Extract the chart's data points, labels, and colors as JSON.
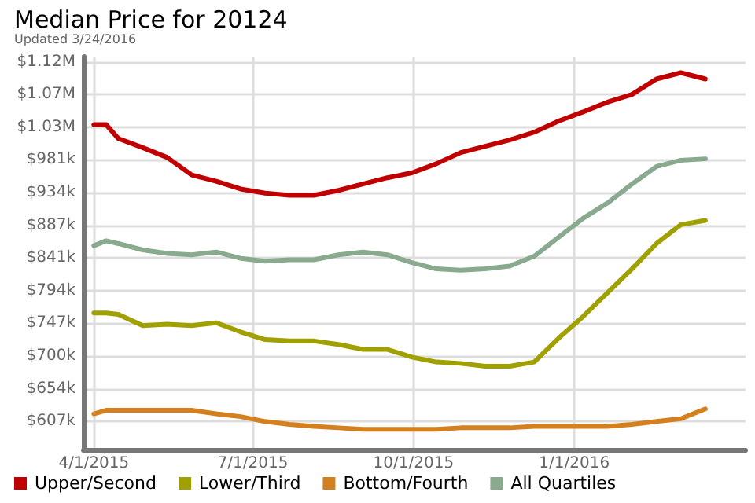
{
  "chart_data": {
    "type": "line",
    "title": "Median Price for 20124",
    "subtitle": "Updated 3/24/2016",
    "x": [
      "2015-04-01",
      "2015-04-08",
      "2015-04-15",
      "2015-04-29",
      "2015-05-13",
      "2015-05-27",
      "2015-06-10",
      "2015-06-24",
      "2015-07-08",
      "2015-07-22",
      "2015-08-05",
      "2015-08-19",
      "2015-09-02",
      "2015-09-16",
      "2015-09-30",
      "2015-10-14",
      "2015-10-28",
      "2015-11-11",
      "2015-11-25",
      "2015-12-09",
      "2015-12-23",
      "2016-01-06",
      "2016-01-20",
      "2016-02-03",
      "2016-02-17",
      "2016-03-02",
      "2016-03-16"
    ],
    "series": [
      {
        "name": "Upper/Second",
        "color": "#c00000",
        "values": [
          1031000,
          1031000,
          1011000,
          998000,
          984000,
          959000,
          950000,
          939000,
          933000,
          930000,
          930000,
          937000,
          946000,
          955000,
          962000,
          975000,
          991000,
          1000000,
          1009000,
          1020000,
          1036000,
          1049000,
          1063000,
          1074000,
          1096000,
          1105000,
          1096000
        ]
      },
      {
        "name": "Lower/Third",
        "color": "#a0a000",
        "values": [
          762000,
          762000,
          760000,
          744000,
          746000,
          744000,
          748000,
          735000,
          724000,
          722000,
          722000,
          717000,
          710000,
          710000,
          699000,
          692000,
          690000,
          686000,
          686000,
          692000,
          726000,
          757000,
          791000,
          825000,
          861000,
          888000,
          894000
        ]
      },
      {
        "name": "Bottom/Fourth",
        "color": "#d4801e",
        "values": [
          618000,
          623000,
          623000,
          623000,
          623000,
          623000,
          618000,
          614000,
          607000,
          603000,
          600000,
          598000,
          596000,
          596000,
          596000,
          596000,
          598000,
          598000,
          598000,
          600000,
          600000,
          600000,
          600000,
          603000,
          607000,
          611000,
          625000
        ]
      },
      {
        "name": "All Quartiles",
        "color": "#8aaa90",
        "values": [
          858000,
          865000,
          861000,
          852000,
          847000,
          845000,
          849000,
          840000,
          836000,
          838000,
          838000,
          845000,
          849000,
          845000,
          834000,
          825000,
          823000,
          825000,
          829000,
          843000,
          870000,
          897000,
          919000,
          946000,
          971000,
          980000,
          982000
        ]
      }
    ],
    "xlim": [
      "2015-03-26",
      "2016-04-08"
    ],
    "xticks": [
      {
        "value": "2015-04-01",
        "label": "4/1/2015"
      },
      {
        "value": "2015-07-01",
        "label": "7/1/2015"
      },
      {
        "value": "2015-10-01",
        "label": "10/1/2015"
      },
      {
        "value": "2016-01-01",
        "label": "1/1/2016"
      }
    ],
    "ylim": [
      567000,
      1128000
    ],
    "yticks": [
      {
        "value": 607000,
        "label": "$607k"
      },
      {
        "value": 653700,
        "label": "$654k"
      },
      {
        "value": 700400,
        "label": "$700k"
      },
      {
        "value": 747100,
        "label": "$747k"
      },
      {
        "value": 793800,
        "label": "$794k"
      },
      {
        "value": 840500,
        "label": "$841k"
      },
      {
        "value": 887200,
        "label": "$887k"
      },
      {
        "value": 933900,
        "label": "$934k"
      },
      {
        "value": 980600,
        "label": "$981k"
      },
      {
        "value": 1027300,
        "label": "$1.03M"
      },
      {
        "value": 1074000,
        "label": "$1.07M"
      },
      {
        "value": 1120700,
        "label": "$1.12M"
      }
    ],
    "grid": true,
    "legend": "bottom",
    "marker": "none",
    "line_style": "solid"
  }
}
